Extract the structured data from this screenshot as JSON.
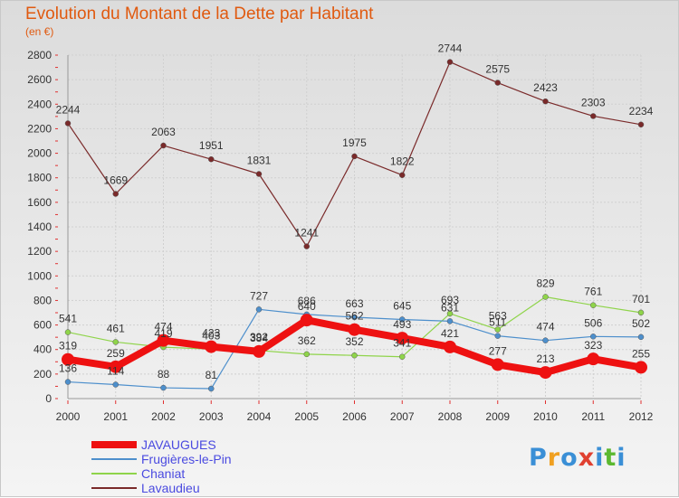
{
  "title": "Evolution du Montant de la Dette par Habitant",
  "unit": "(en €)",
  "brand": {
    "logo_text": "Proxiti",
    "letters": [
      {
        "ch": "P",
        "color": "#3a8fd6"
      },
      {
        "ch": "r",
        "color": "#f0a020"
      },
      {
        "ch": "o",
        "color": "#3a8fd6"
      },
      {
        "ch": "x",
        "color": "#e04030"
      },
      {
        "ch": "i",
        "color": "#3a8fd6"
      },
      {
        "ch": "t",
        "color": "#5cb830"
      },
      {
        "ch": "i",
        "color": "#3a8fd6"
      }
    ]
  },
  "chart_data": {
    "type": "line",
    "x": [
      "2000",
      "2001",
      "2002",
      "2003",
      "2004",
      "2005",
      "2006",
      "2007",
      "2008",
      "2009",
      "2010",
      "2011",
      "2012"
    ],
    "ylim": [
      0,
      2800
    ],
    "yticks": [
      0,
      200,
      400,
      600,
      800,
      1000,
      1200,
      1400,
      1600,
      1800,
      2000,
      2200,
      2400,
      2600,
      2800
    ],
    "grid": true,
    "legend_position": "bottom-left",
    "series": [
      {
        "name": "JAVAUGUES",
        "color": "#ee1111",
        "values": [
          319,
          259,
          474,
          423,
          384,
          640,
          562,
          493,
          421,
          277,
          213,
          323,
          255
        ]
      },
      {
        "name": "Frugières-le-Pin",
        "color": "#4d8fcc",
        "values": [
          136,
          114,
          88,
          81,
          727,
          686,
          663,
          645,
          631,
          511,
          474,
          506,
          502
        ]
      },
      {
        "name": "Chaniat",
        "color": "#8fd44a",
        "values": [
          541,
          461,
          419,
          403,
          392,
          362,
          352,
          341,
          693,
          563,
          829,
          761,
          701
        ]
      },
      {
        "name": "Lavaudieu",
        "color": "#7a2a2a",
        "values": [
          2244,
          1669,
          2063,
          1951,
          1831,
          1241,
          1975,
          1822,
          2744,
          2575,
          2423,
          2303,
          2234
        ]
      }
    ]
  }
}
